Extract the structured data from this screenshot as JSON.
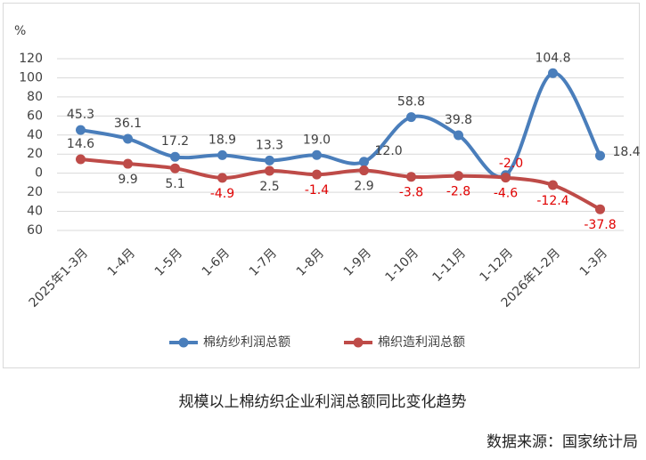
{
  "chart_data": {
    "type": "line",
    "title": "规模以上棉纺织企业利润总额同比变化趋势",
    "source": "数据来源：国家统计局",
    "y_unit": "%",
    "categories": [
      "2025年1-3月",
      "1-4月",
      "1-5月",
      "1-6月",
      "1-7月",
      "1-8月",
      "1-9月",
      "1-10月",
      "1-11月",
      "1-12月",
      "2026年1-2月",
      "1-3月"
    ],
    "series": [
      {
        "name": "棉纺纱利润总额",
        "color": "#4a7ebb",
        "values": [
          45.3,
          36.1,
          17.2,
          18.9,
          13.3,
          19.0,
          12.0,
          58.8,
          39.8,
          -2.0,
          104.8,
          18.4
        ],
        "value_labels": [
          "45.3",
          "36.1",
          "17.2",
          "18.9",
          "13.3",
          "19.0",
          "12.0",
          "58.8",
          "39.8",
          "-2.0",
          "104.8",
          "18.4"
        ]
      },
      {
        "name": "棉织造利润总额",
        "color": "#be4b48",
        "values": [
          14.6,
          9.9,
          5.1,
          -4.9,
          2.5,
          -1.4,
          2.9,
          -3.8,
          -2.8,
          -4.6,
          -12.4,
          -37.8
        ],
        "value_labels": [
          "14.6",
          "9.9",
          "5.1",
          "-4.9",
          "2.5",
          "-1.4",
          "2.9",
          "-3.8",
          "-2.8",
          "-4.6",
          "-12.4",
          "-37.8"
        ]
      }
    ],
    "ylim": [
      -60,
      120
    ],
    "yticks": [
      {
        "value": -60,
        "label": "60"
      },
      {
        "value": -40,
        "label": "40"
      },
      {
        "value": -20,
        "label": "20"
      },
      0,
      20,
      40,
      60,
      80,
      100,
      120
    ],
    "grid": true,
    "legend": "bottom"
  }
}
